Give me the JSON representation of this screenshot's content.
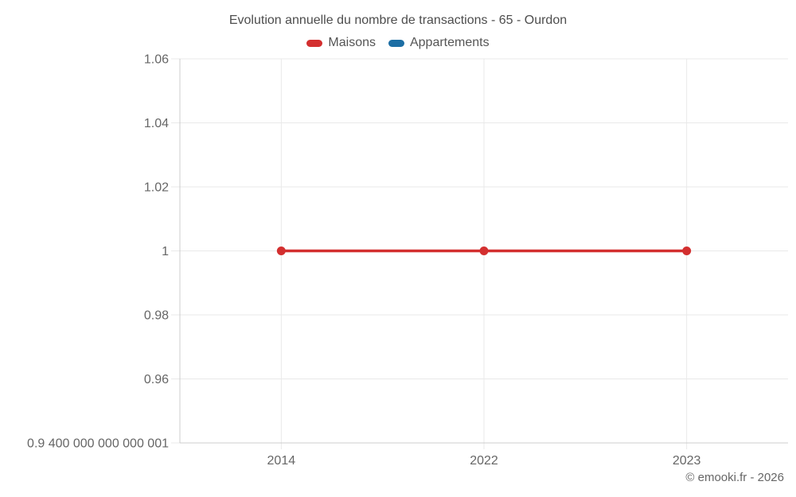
{
  "title": "Evolution annuelle du nombre de transactions - 65 - Ourdon",
  "legend": [
    {
      "label": "Maisons",
      "color": "#d32f2f"
    },
    {
      "label": "Appartements",
      "color": "#1c6ea4"
    }
  ],
  "copyright": "© emooki.fr - 2026",
  "colors": {
    "grid": "#e9e9e9",
    "axis": "#cccccc",
    "tick_text": "#666666",
    "title_text": "#4d4d4d",
    "legend_text": "#555555",
    "background": "#ffffff",
    "maisons": "#d32f2f",
    "appartements": "#1c6ea4"
  },
  "chart_data": {
    "type": "line",
    "title": "Evolution annuelle du nombre de transactions - 65 - Ourdon",
    "x_axis_type": "category",
    "categories": [
      "2014",
      "2022",
      "2023"
    ],
    "series": [
      {
        "name": "Maisons",
        "color": "#d32f2f",
        "values": [
          1,
          1,
          1
        ]
      },
      {
        "name": "Appartements",
        "color": "#1c6ea4",
        "values": []
      }
    ],
    "xlabel": "",
    "ylabel": "",
    "ylim": [
      0.9400000000000001,
      1.06
    ],
    "y_ticks": [
      {
        "value": 1.06,
        "label": "1.06"
      },
      {
        "value": 1.04,
        "label": "1.04"
      },
      {
        "value": 1.02,
        "label": "1.02"
      },
      {
        "value": 1,
        "label": "1"
      },
      {
        "value": 0.98,
        "label": "0.98"
      },
      {
        "value": 0.96,
        "label": "0.96"
      },
      {
        "value": 0.9400000000000001,
        "label": "0.9 400 000 000 000 001"
      }
    ],
    "grid": true,
    "legend_position": "top"
  }
}
